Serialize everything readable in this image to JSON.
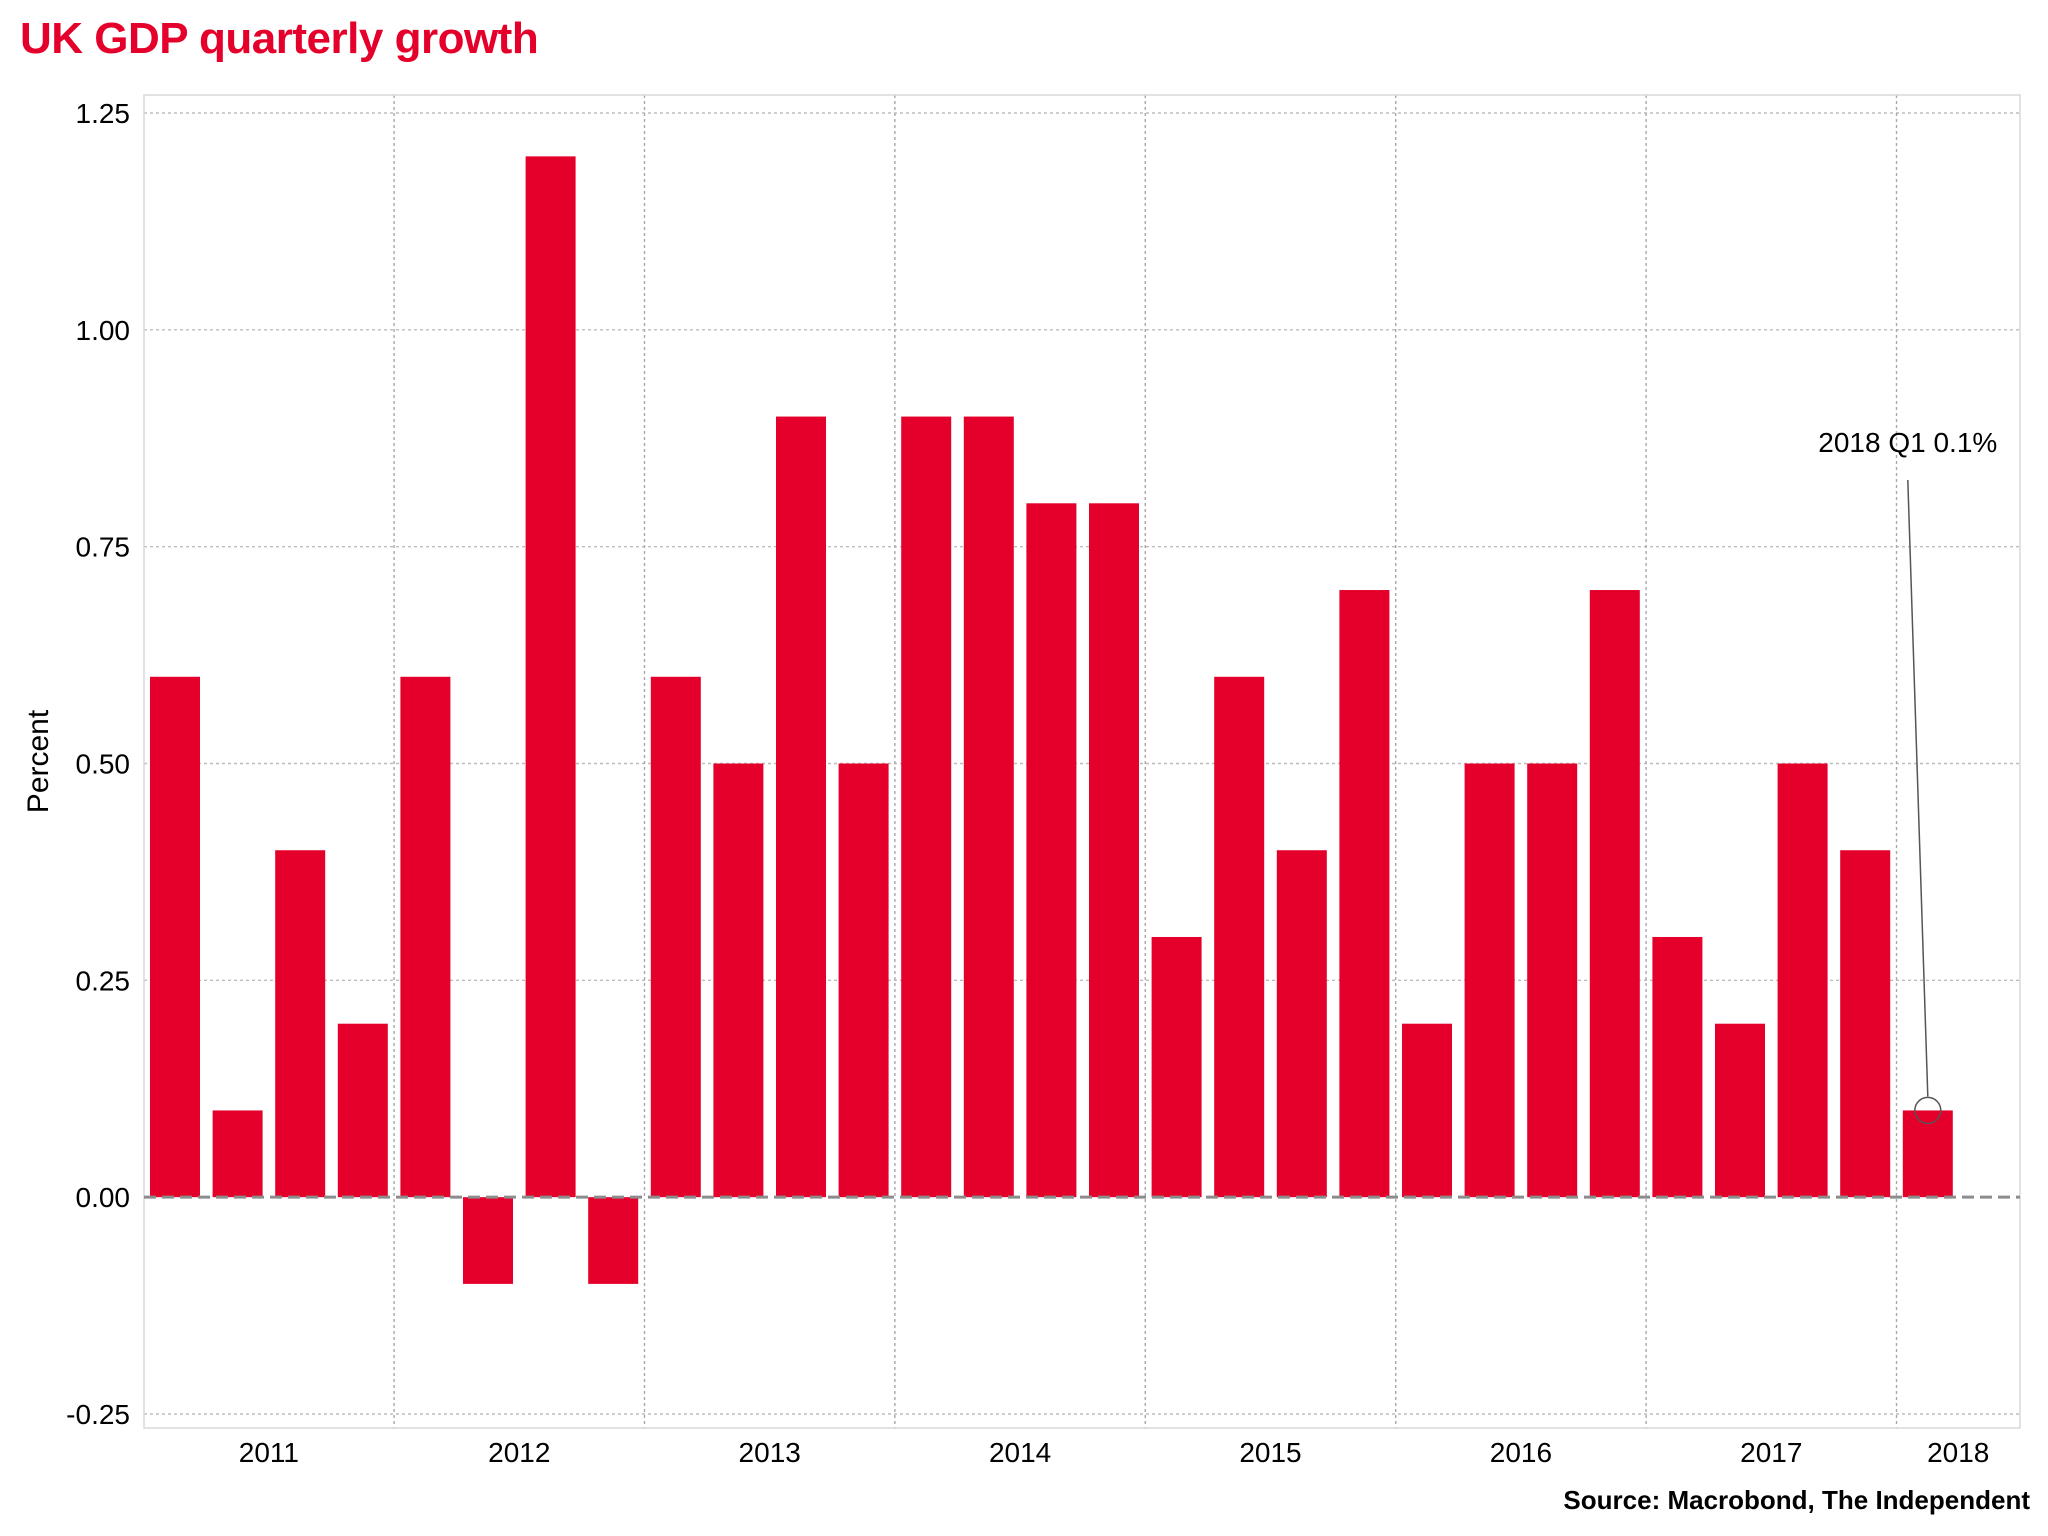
{
  "chart_data": {
    "type": "bar",
    "title": "UK GDP quarterly growth",
    "ylabel": "Percent",
    "xlabel": "",
    "source": "Source: Macrobond, The Independent",
    "ylim": [
      -0.25,
      1.25
    ],
    "yticks": [
      -0.25,
      0.0,
      0.25,
      0.5,
      0.75,
      1.0,
      1.25
    ],
    "ytick_labels": [
      "-0.25",
      "0.00",
      "0.25",
      "0.50",
      "0.75",
      "1.00",
      "1.25"
    ],
    "year_labels": [
      "2011",
      "2012",
      "2013",
      "2014",
      "2015",
      "2016",
      "2017",
      "2018"
    ],
    "categories": [
      "2011 Q1",
      "2011 Q2",
      "2011 Q3",
      "2011 Q4",
      "2012 Q1",
      "2012 Q2",
      "2012 Q3",
      "2012 Q4",
      "2013 Q1",
      "2013 Q2",
      "2013 Q3",
      "2013 Q4",
      "2014 Q1",
      "2014 Q2",
      "2014 Q3",
      "2014 Q4",
      "2015 Q1",
      "2015 Q2",
      "2015 Q3",
      "2015 Q4",
      "2016 Q1",
      "2016 Q2",
      "2016 Q3",
      "2016 Q4",
      "2017 Q1",
      "2017 Q2",
      "2017 Q3",
      "2017 Q4",
      "2018 Q1"
    ],
    "values": [
      0.6,
      0.1,
      0.4,
      0.2,
      0.6,
      -0.1,
      1.2,
      -0.1,
      0.6,
      0.5,
      0.9,
      0.5,
      0.9,
      0.9,
      0.8,
      0.8,
      0.3,
      0.6,
      0.4,
      0.7,
      0.2,
      0.5,
      0.5,
      0.7,
      0.3,
      0.2,
      0.5,
      0.4,
      0.1
    ],
    "bar_color": "#e4002b",
    "grid": true,
    "annotation": {
      "text": "2018 Q1 0.1%",
      "category": "2018 Q1",
      "value": 0.1
    }
  }
}
